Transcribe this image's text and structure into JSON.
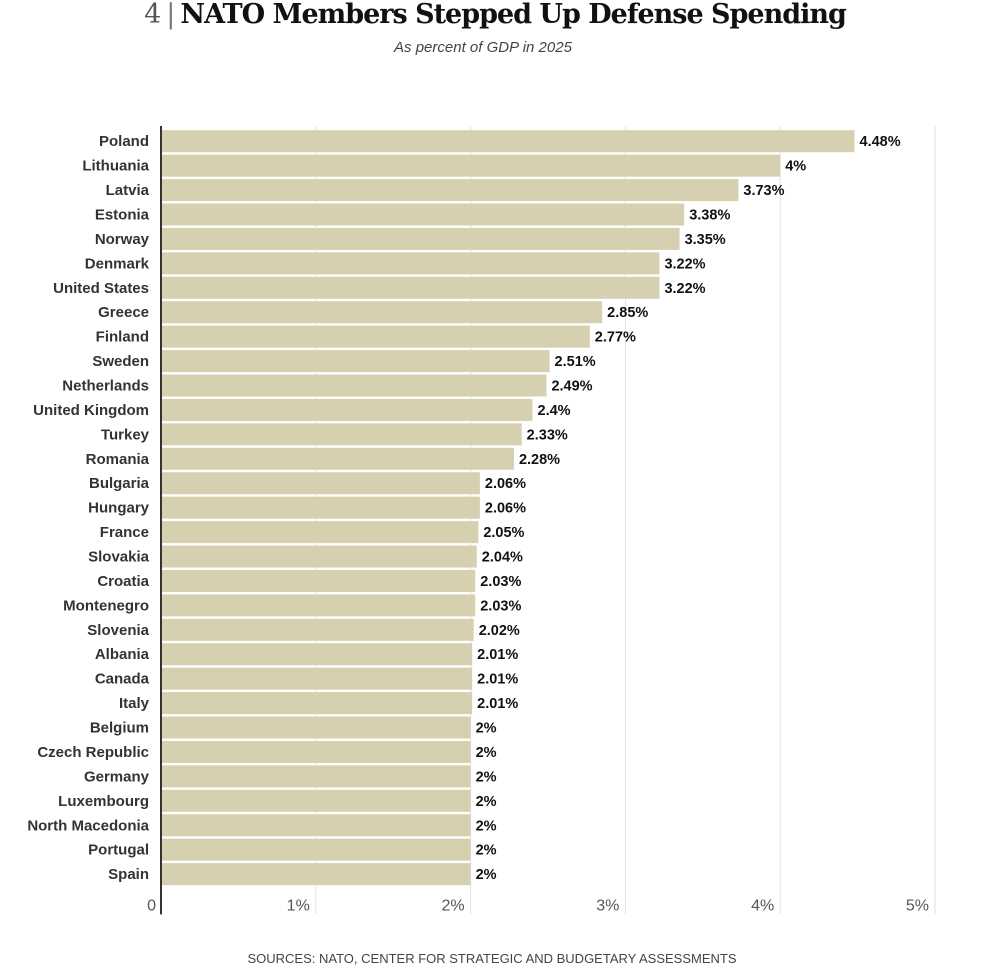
{
  "chart_data": {
    "type": "bar",
    "orientation": "horizontal",
    "title_number": "4",
    "title_separator": "|",
    "title": "NATO Members Stepped Up Defense Spending",
    "subtitle": "As percent of GDP in 2025",
    "source": "SOURCES: NATO, CENTER FOR STRATEGIC AND BUDGETARY ASSESSMENTS",
    "xlabel": "",
    "ylabel": "",
    "xlim": [
      0,
      5
    ],
    "grid": true,
    "bar_color": "#d6d0b1",
    "tick_labels": [
      "0",
      "1%",
      "2%",
      "3%",
      "4%",
      "5%"
    ],
    "categories": [
      "Poland",
      "Lithuania",
      "Latvia",
      "Estonia",
      "Norway",
      "Denmark",
      "United States",
      "Greece",
      "Finland",
      "Sweden",
      "Netherlands",
      "United Kingdom",
      "Turkey",
      "Romania",
      "Bulgaria",
      "Hungary",
      "France",
      "Slovakia",
      "Croatia",
      "Montenegro",
      "Slovenia",
      "Albania",
      "Canada",
      "Italy",
      "Belgium",
      "Czech Republic",
      "Germany",
      "Luxembourg",
      "North Macedonia",
      "Portugal",
      "Spain"
    ],
    "values": [
      4.48,
      4,
      3.73,
      3.38,
      3.35,
      3.22,
      3.22,
      2.85,
      2.77,
      2.51,
      2.49,
      2.4,
      2.33,
      2.28,
      2.06,
      2.06,
      2.05,
      2.04,
      2.03,
      2.03,
      2.02,
      2.01,
      2.01,
      2.01,
      2,
      2,
      2,
      2,
      2,
      2,
      2
    ],
    "value_labels": [
      "4.48%",
      "4%",
      "3.73%",
      "3.38%",
      "3.35%",
      "3.22%",
      "3.22%",
      "2.85%",
      "2.77%",
      "2.51%",
      "2.49%",
      "2.4%",
      "2.33%",
      "2.28%",
      "2.06%",
      "2.06%",
      "2.05%",
      "2.04%",
      "2.03%",
      "2.03%",
      "2.02%",
      "2.01%",
      "2.01%",
      "2.01%",
      "2%",
      "2%",
      "2%",
      "2%",
      "2%",
      "2%",
      "2%"
    ]
  }
}
